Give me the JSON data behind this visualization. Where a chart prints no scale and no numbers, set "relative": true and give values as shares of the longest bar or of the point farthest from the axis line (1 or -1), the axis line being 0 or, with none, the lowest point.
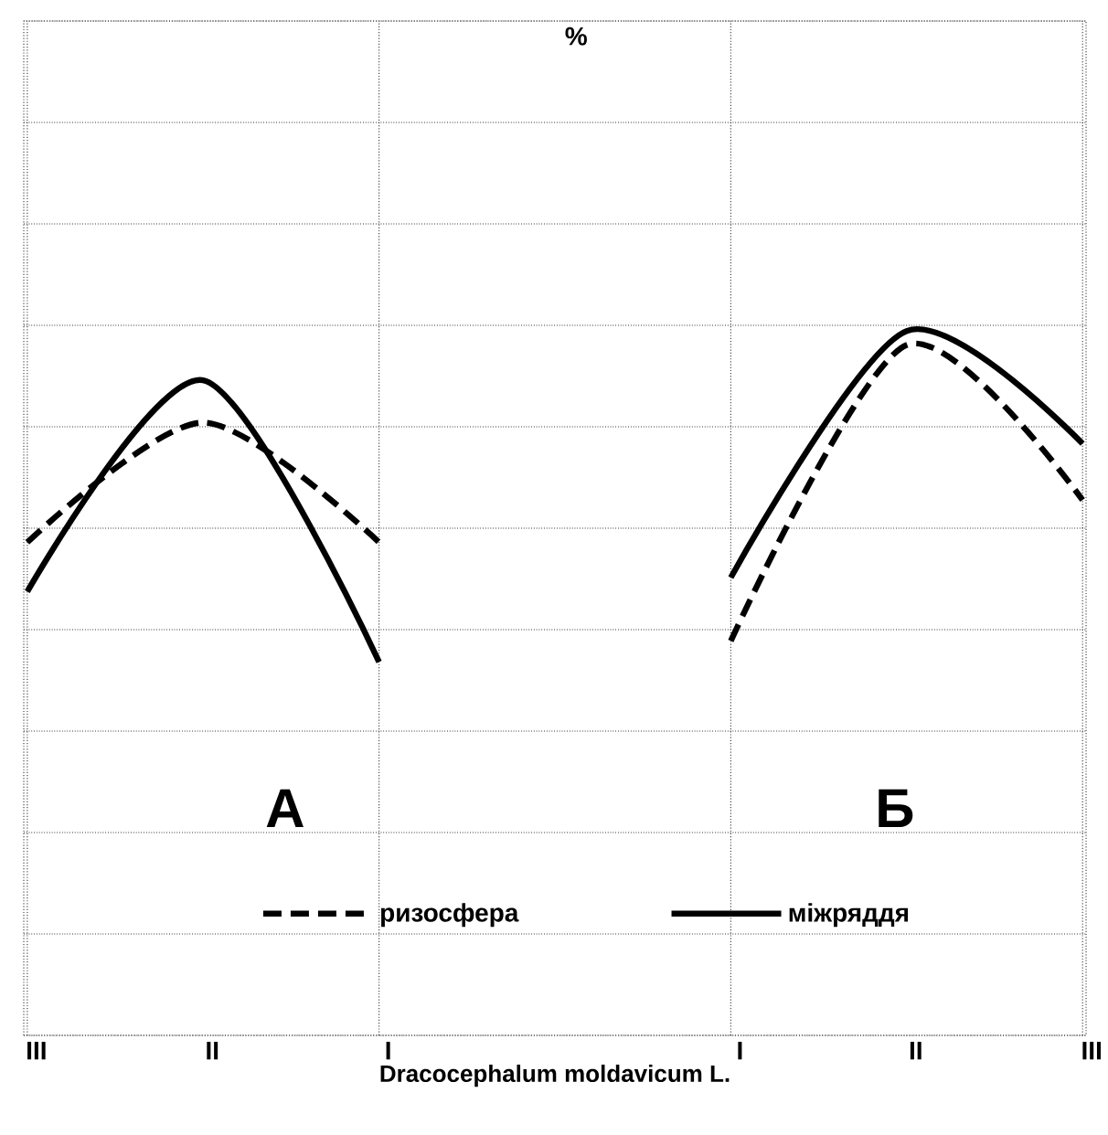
{
  "chart_data": {
    "type": "line",
    "xlabel": "Dracocephalum moldavicum L.",
    "relative": true,
    "grid": true,
    "legend": "bottom",
    "categories": [
      "III",
      "II",
      "I",
      null,
      "I",
      "II",
      "III"
    ],
    "annotations": [
      "%",
      "А",
      "Б"
    ],
    "series": [
      {
        "name": "ризосфера",
        "color": "#000000",
        "line_style": "dashed",
        "values": [
          0.7,
          0.87,
          0.7,
          null,
          0.56,
          0.98,
          0.76
        ]
      },
      {
        "name": "міжряддя",
        "color": "#000000",
        "line_style": "solid",
        "values": [
          0.63,
          0.93,
          0.53,
          null,
          0.65,
          1,
          0.84
        ]
      }
    ]
  }
}
